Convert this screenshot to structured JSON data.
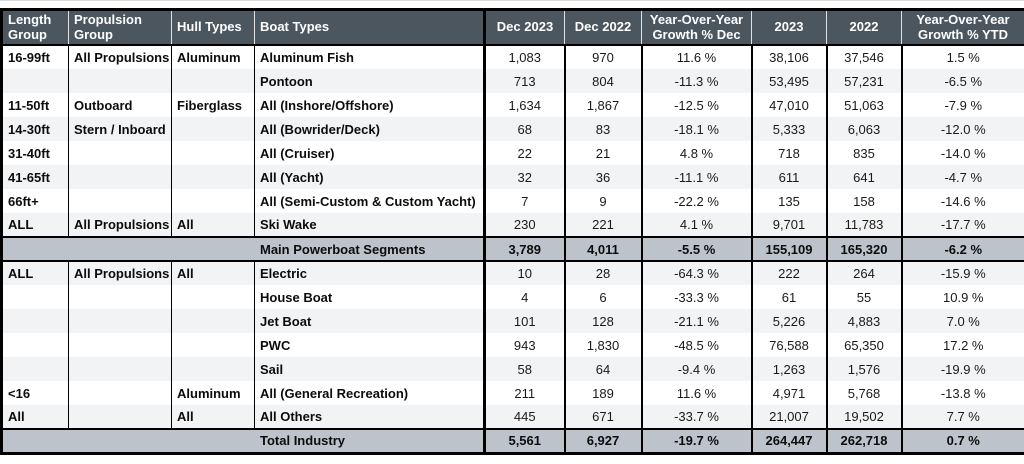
{
  "chart_data": {
    "type": "table",
    "columns": [
      "Length Group",
      "Propulsion Group",
      "Hull Types",
      "Boat Types",
      "Dec 2023",
      "Dec 2022",
      "Year-Over-Year Growth % Dec",
      "2023",
      "2022",
      "Year-Over-Year Growth % YTD"
    ],
    "sections": [
      {
        "stripe_start": "white",
        "rows": [
          [
            "16-99ft",
            "All Propulsions",
            "Aluminum",
            "Aluminum Fish",
            "1,083",
            "970",
            "11.6 %",
            "38,106",
            "37,546",
            "1.5 %"
          ],
          [
            "",
            "",
            "",
            "Pontoon",
            "713",
            "804",
            "-11.3 %",
            "53,495",
            "57,231",
            "-6.5 %"
          ],
          [
            "11-50ft",
            "Outboard",
            "Fiberglass",
            "All (Inshore/Offshore)",
            "1,634",
            "1,867",
            "-12.5 %",
            "47,010",
            "51,063",
            "-7.9 %"
          ],
          [
            "14-30ft",
            "Stern / Inboard",
            "",
            "All (Bowrider/Deck)",
            "68",
            "83",
            "-18.1 %",
            "5,333",
            "6,063",
            "-12.0 %"
          ],
          [
            "31-40ft",
            "",
            "",
            "All (Cruiser)",
            "22",
            "21",
            "4.8 %",
            "718",
            "835",
            "-14.0 %"
          ],
          [
            "41-65ft",
            "",
            "",
            "All (Yacht)",
            "32",
            "36",
            "-11.1 %",
            "611",
            "641",
            "-4.7 %"
          ],
          [
            "66ft+",
            "",
            "",
            "All (Semi-Custom & Custom Yacht)",
            "7",
            "9",
            "-22.2 %",
            "135",
            "158",
            "-14.6 %"
          ],
          [
            "ALL",
            "All Propulsions",
            "All",
            "Ski Wake",
            "230",
            "221",
            "4.1 %",
            "9,701",
            "11,783",
            "-17.7 %"
          ]
        ],
        "summary": {
          "label": "Main Powerboat Segments",
          "values": [
            "3,789",
            "4,011",
            "-5.5 %",
            "155,109",
            "165,320",
            "-6.2 %"
          ]
        }
      },
      {
        "stripe_start": "shaded",
        "rows": [
          [
            "ALL",
            "All Propulsions",
            "All",
            "Electric",
            "10",
            "28",
            "-64.3 %",
            "222",
            "264",
            "-15.9 %"
          ],
          [
            "",
            "",
            "",
            "House Boat",
            "4",
            "6",
            "-33.3 %",
            "61",
            "55",
            "10.9 %"
          ],
          [
            "",
            "",
            "",
            "Jet Boat",
            "101",
            "128",
            "-21.1 %",
            "5,226",
            "4,883",
            "7.0 %"
          ],
          [
            "",
            "",
            "",
            "PWC",
            "943",
            "1,830",
            "-48.5 %",
            "76,588",
            "65,350",
            "17.2 %"
          ],
          [
            "",
            "",
            "",
            "Sail",
            "58",
            "64",
            "-9.4 %",
            "1,263",
            "1,576",
            "-19.9 %"
          ],
          [
            "<16",
            "",
            "Aluminum",
            "All (General Recreation)",
            "211",
            "189",
            "11.6 %",
            "4,971",
            "5,768",
            "-13.8 %"
          ],
          [
            "All",
            "",
            "All",
            "All Others",
            "445",
            "671",
            "-33.7 %",
            "21,007",
            "19,502",
            "7.7 %"
          ]
        ],
        "summary": {
          "label": "Total Industry",
          "values": [
            "5,561",
            "6,927",
            "-19.7 %",
            "264,447",
            "262,718",
            "0.7 %"
          ]
        }
      }
    ]
  },
  "colors": {
    "header_bg": "#4b565f",
    "header_text": "#ffffff",
    "summary_bg": "#bcc3ca",
    "stripe_bg": "#f2f3f4",
    "row_bg": "#ffffff",
    "border": "#000000",
    "text": "#1a1a1a"
  }
}
